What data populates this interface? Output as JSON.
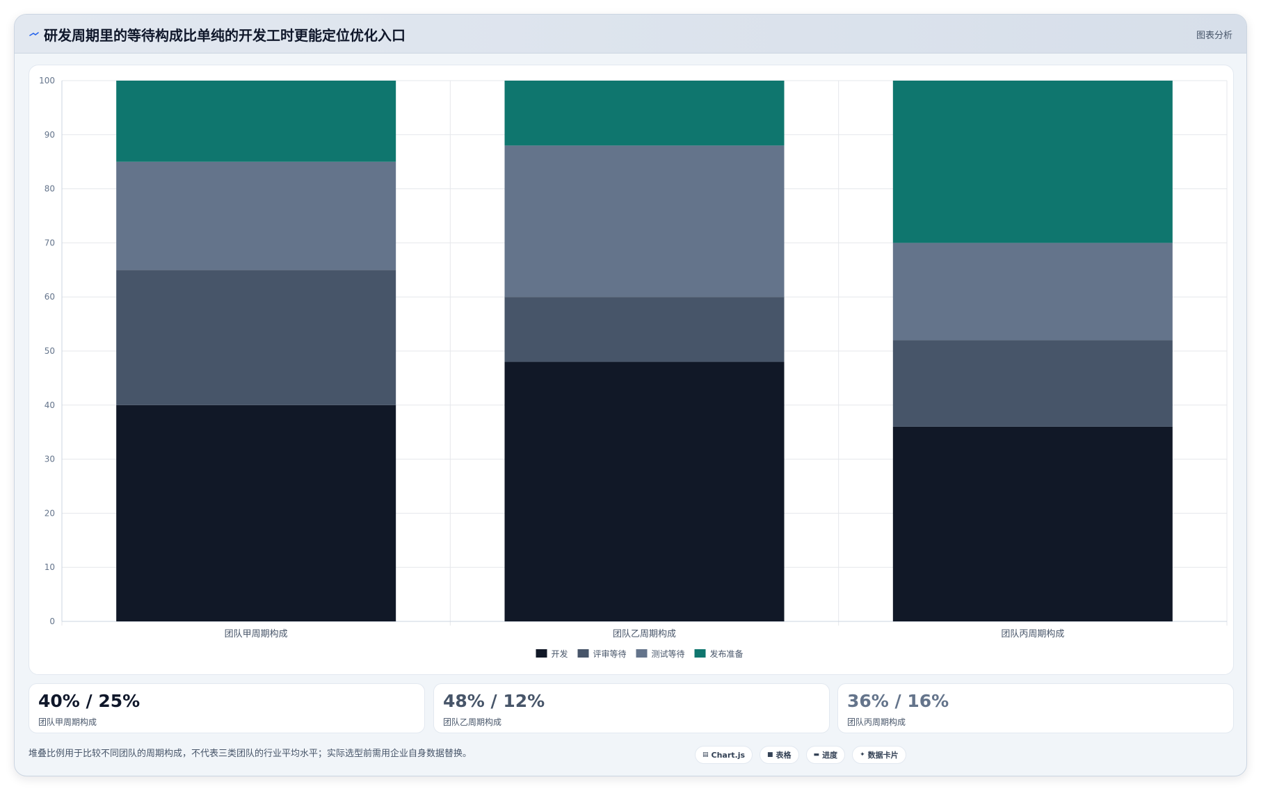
{
  "header": {
    "title": "研发周期里的等待构成比单纯的开发工时更能定位优化入口",
    "tag": "图表分析"
  },
  "chart_data": {
    "type": "bar",
    "stacked": true,
    "categories": [
      "团队甲周期构成",
      "团队乙周期构成",
      "团队丙周期构成"
    ],
    "series": [
      {
        "name": "开发",
        "color": "#111827",
        "values": [
          40,
          48,
          36
        ]
      },
      {
        "name": "评审等待",
        "color": "#475569",
        "values": [
          25,
          12,
          16
        ]
      },
      {
        "name": "测试等待",
        "color": "#64748b",
        "values": [
          20,
          28,
          18
        ]
      },
      {
        "name": "发布准备",
        "color": "#0f766e",
        "values": [
          15,
          12,
          30
        ]
      }
    ],
    "ylim": [
      0,
      100
    ],
    "yticks": [
      0,
      10,
      20,
      30,
      40,
      50,
      60,
      70,
      80,
      90,
      100
    ],
    "grid": true,
    "legend_position": "bottom"
  },
  "kpis": [
    {
      "value": "40% / 25%",
      "label": "团队甲周期构成",
      "color": "#0f172a"
    },
    {
      "value": "48% / 12%",
      "label": "团队乙周期构成",
      "color": "#475569"
    },
    {
      "value": "36% / 16%",
      "label": "团队丙周期构成",
      "color": "#64748b"
    }
  ],
  "footnote": "堆叠比例用于比较不同团队的周期构成，不代表三类团队的行业平均水平；实际选型前需用企业自身数据替换。",
  "pills": [
    {
      "icon": "▤",
      "icon_name": "chart-icon",
      "label": "Chart.js"
    },
    {
      "icon": "■",
      "icon_name": "table-icon",
      "label": "表格"
    },
    {
      "icon": "▬",
      "icon_name": "progress-icon",
      "label": "进度"
    },
    {
      "icon": "✦",
      "icon_name": "sparkle-icon",
      "label": "数据卡片"
    }
  ]
}
